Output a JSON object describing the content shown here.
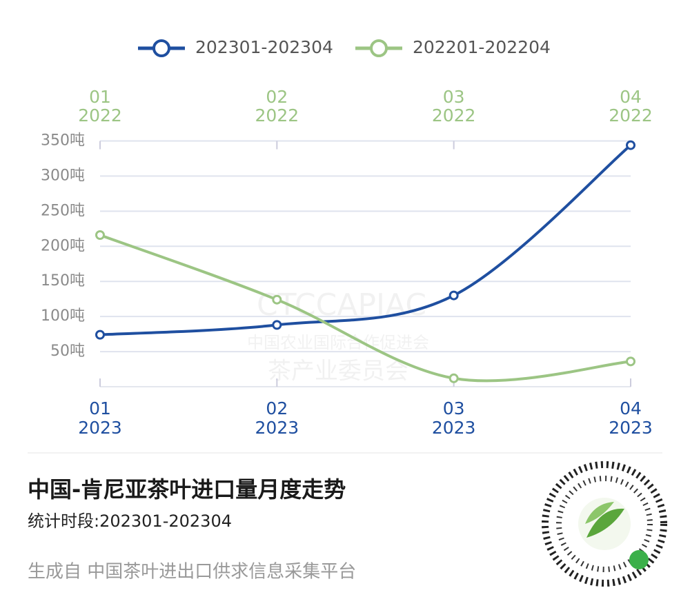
{
  "chart_data": {
    "type": "line",
    "title": "中国-肯尼亚茶叶进口量月度走势",
    "subtitle": "统计时段:202301-202304",
    "footer": "生成自  中国茶叶进出口供求信息采集平台",
    "watermark": [
      "CTCCAPIAC",
      "中国农业国际合作促进会",
      "茶产业委员会"
    ],
    "categories": [
      [
        "01",
        "2023"
      ],
      [
        "02",
        "2023"
      ],
      [
        "03",
        "2023"
      ],
      [
        "04",
        "2023"
      ]
    ],
    "top_categories": [
      [
        "01",
        "2022"
      ],
      [
        "02",
        "2022"
      ],
      [
        "03",
        "2022"
      ],
      [
        "04",
        "2022"
      ]
    ],
    "series": [
      {
        "name": "202301-202304",
        "color": "#1f4fa0",
        "axis": "bottom",
        "values": [
          74,
          88,
          130,
          344
        ]
      },
      {
        "name": "202201-202204",
        "color": "#9cc584",
        "axis": "top",
        "values": [
          216,
          124,
          12,
          36
        ]
      }
    ],
    "ylim": [
      0,
      350
    ],
    "yticks": [
      {
        "value": 50,
        "label": "50吨"
      },
      {
        "value": 100,
        "label": "100吨"
      },
      {
        "value": 150,
        "label": "150吨"
      },
      {
        "value": 200,
        "label": "200吨"
      },
      {
        "value": 250,
        "label": "250吨"
      },
      {
        "value": 300,
        "label": "300吨"
      },
      {
        "value": 350,
        "label": "350吨"
      }
    ],
    "grid": true,
    "legend": "top"
  }
}
